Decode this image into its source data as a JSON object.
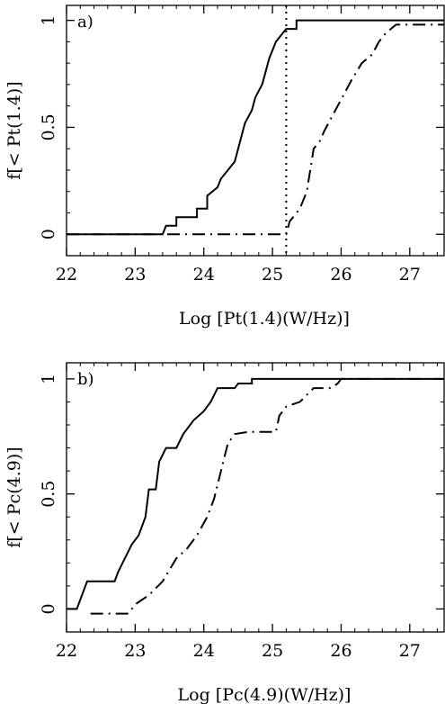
{
  "chart_data": [
    {
      "type": "line",
      "panel_label": "a)",
      "xlabel": "Log [Pt(1.4)(W/Hz)]",
      "ylabel": "f[< Pt(1.4)]",
      "xlim": [
        22,
        27.5
      ],
      "ylim": [
        -0.1,
        1.07
      ],
      "xticks": [
        22,
        23,
        24,
        25,
        26,
        27
      ],
      "yticks": [
        0,
        0.5,
        1
      ],
      "ytick_labels": [
        "0",
        "0.5",
        "1"
      ],
      "vline": 25.2,
      "series": [
        {
          "style": "solid",
          "points": [
            [
              22,
              0
            ],
            [
              23.4,
              0
            ],
            [
              23.45,
              0.04
            ],
            [
              23.6,
              0.04
            ],
            [
              23.6,
              0.08
            ],
            [
              23.9,
              0.08
            ],
            [
              23.9,
              0.12
            ],
            [
              24.05,
              0.12
            ],
            [
              24.05,
              0.18
            ],
            [
              24.2,
              0.22
            ],
            [
              24.25,
              0.26
            ],
            [
              24.35,
              0.3
            ],
            [
              24.45,
              0.34
            ],
            [
              24.5,
              0.4
            ],
            [
              24.55,
              0.46
            ],
            [
              24.6,
              0.52
            ],
            [
              24.7,
              0.58
            ],
            [
              24.75,
              0.64
            ],
            [
              24.85,
              0.7
            ],
            [
              24.9,
              0.76
            ],
            [
              24.95,
              0.82
            ],
            [
              25.0,
              0.86
            ],
            [
              25.05,
              0.9
            ],
            [
              25.15,
              0.94
            ],
            [
              25.2,
              0.96
            ],
            [
              25.35,
              0.96
            ],
            [
              25.35,
              1.0
            ],
            [
              27.5,
              1.0
            ]
          ]
        },
        {
          "style": "dashdot",
          "points": [
            [
              22,
              0
            ],
            [
              25.2,
              0
            ],
            [
              25.25,
              0.06
            ],
            [
              25.4,
              0.12
            ],
            [
              25.5,
              0.2
            ],
            [
              25.55,
              0.3
            ],
            [
              25.6,
              0.4
            ],
            [
              25.7,
              0.44
            ],
            [
              25.75,
              0.48
            ],
            [
              25.85,
              0.54
            ],
            [
              25.95,
              0.6
            ],
            [
              26.05,
              0.66
            ],
            [
              26.15,
              0.72
            ],
            [
              26.3,
              0.8
            ],
            [
              26.45,
              0.84
            ],
            [
              26.55,
              0.9
            ],
            [
              26.65,
              0.94
            ],
            [
              26.8,
              0.98
            ],
            [
              27.5,
              0.98
            ]
          ]
        }
      ]
    },
    {
      "type": "line",
      "panel_label": "b)",
      "xlabel": "Log [Pc(4.9)(W/Hz)]",
      "ylabel": "f[< Pc(4.9)]",
      "xlim": [
        22,
        27.5
      ],
      "ylim": [
        -0.1,
        1.07
      ],
      "xticks": [
        22,
        23,
        24,
        25,
        26,
        27
      ],
      "yticks": [
        0,
        0.5,
        1
      ],
      "ytick_labels": [
        "0",
        "0.5",
        "1"
      ],
      "series": [
        {
          "style": "solid",
          "points": [
            [
              22,
              0
            ],
            [
              22.15,
              0
            ],
            [
              22.2,
              0.04
            ],
            [
              22.25,
              0.08
            ],
            [
              22.3,
              0.12
            ],
            [
              22.7,
              0.12
            ],
            [
              22.75,
              0.16
            ],
            [
              22.85,
              0.22
            ],
            [
              22.95,
              0.28
            ],
            [
              23.05,
              0.32
            ],
            [
              23.15,
              0.4
            ],
            [
              23.2,
              0.52
            ],
            [
              23.3,
              0.52
            ],
            [
              23.35,
              0.64
            ],
            [
              23.45,
              0.7
            ],
            [
              23.6,
              0.7
            ],
            [
              23.7,
              0.76
            ],
            [
              23.85,
              0.82
            ],
            [
              24.0,
              0.86
            ],
            [
              24.1,
              0.9
            ],
            [
              24.2,
              0.96
            ],
            [
              24.45,
              0.96
            ],
            [
              24.5,
              0.98
            ],
            [
              24.7,
              0.98
            ],
            [
              24.7,
              1.0
            ],
            [
              27.5,
              1.0
            ]
          ]
        },
        {
          "style": "dashdot",
          "points": [
            [
              22.35,
              -0.02
            ],
            [
              22.9,
              -0.02
            ],
            [
              23.0,
              0.02
            ],
            [
              23.2,
              0.06
            ],
            [
              23.4,
              0.12
            ],
            [
              23.6,
              0.22
            ],
            [
              23.75,
              0.26
            ],
            [
              23.9,
              0.32
            ],
            [
              24.05,
              0.4
            ],
            [
              24.15,
              0.48
            ],
            [
              24.25,
              0.6
            ],
            [
              24.35,
              0.72
            ],
            [
              24.45,
              0.76
            ],
            [
              24.65,
              0.77
            ],
            [
              24.75,
              0.77
            ],
            [
              25.05,
              0.77
            ],
            [
              25.1,
              0.84
            ],
            [
              25.2,
              0.88
            ],
            [
              25.4,
              0.9
            ],
            [
              25.6,
              0.96
            ],
            [
              25.85,
              0.96
            ],
            [
              25.95,
              0.98
            ],
            [
              26.0,
              1.0
            ],
            [
              27.5,
              1.0
            ]
          ]
        }
      ]
    }
  ]
}
